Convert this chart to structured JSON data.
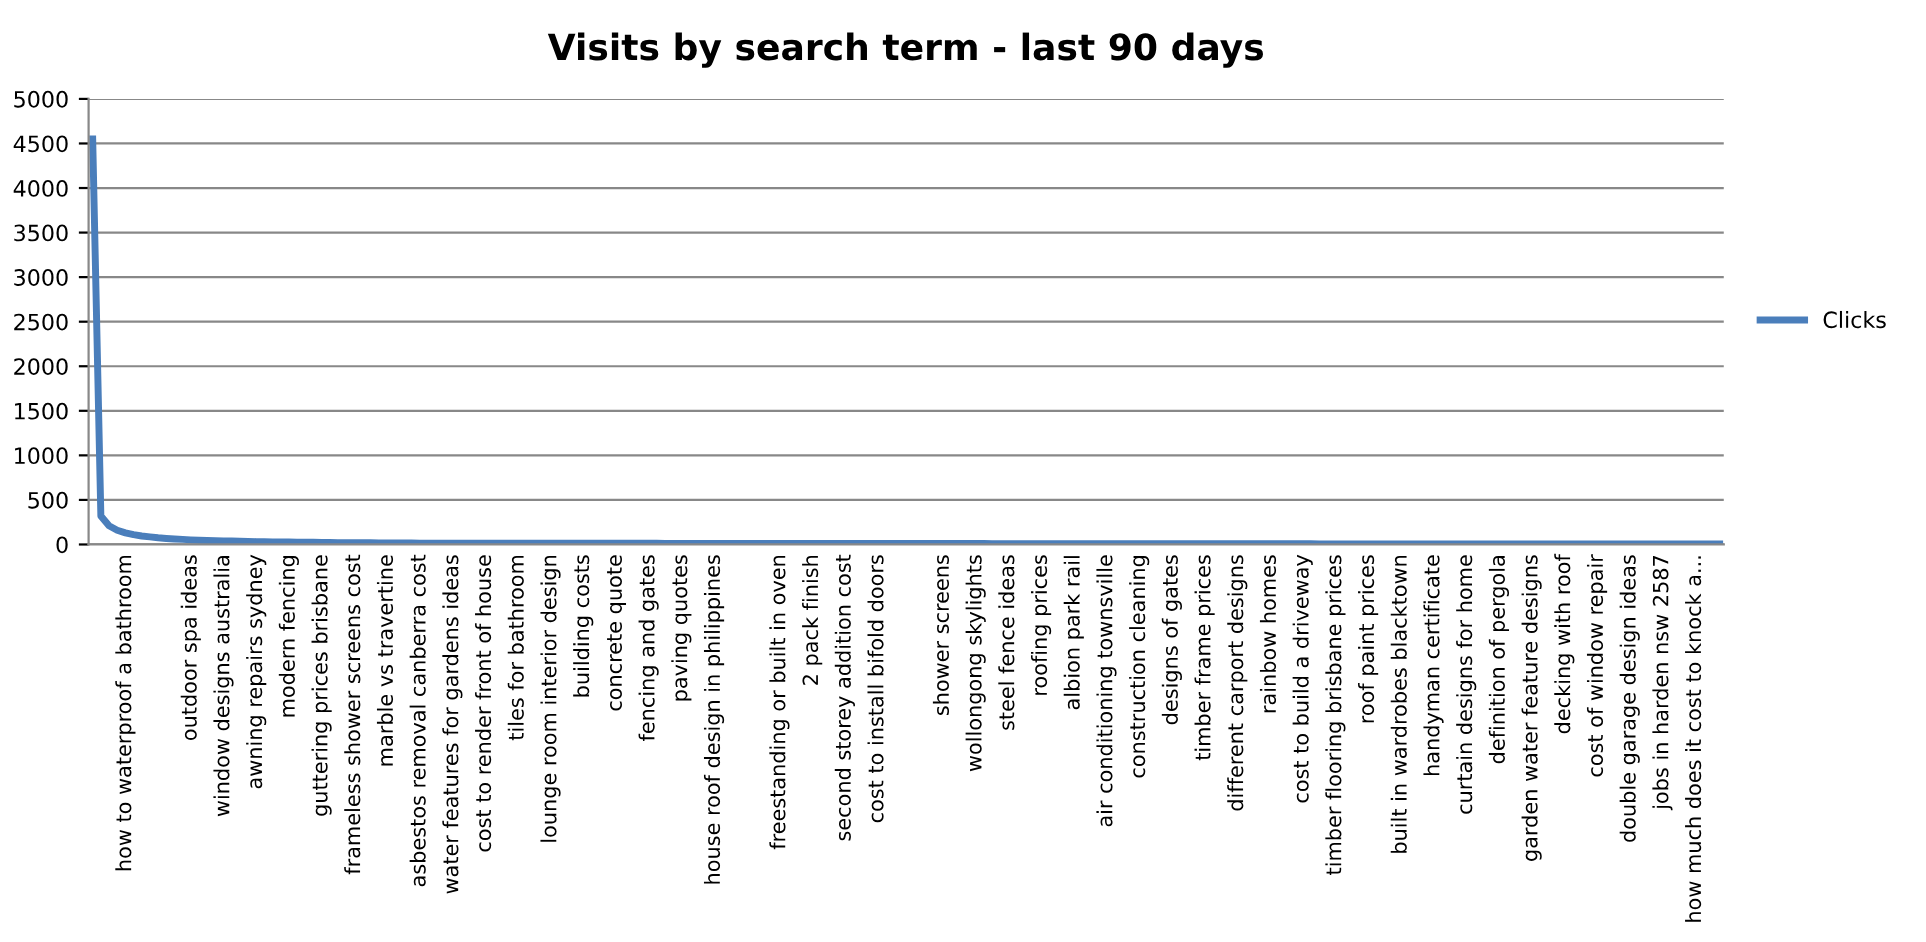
{
  "chart_data": {
    "type": "line",
    "title": "Visits by search term - last 90 days",
    "categories": [
      null,
      null,
      null,
      null,
      "how to waterproof a bathroom",
      null,
      null,
      null,
      null,
      null,
      null,
      null,
      "outdoor spa ideas",
      null,
      null,
      null,
      "window designs australia",
      null,
      null,
      null,
      "awning repairs sydney",
      null,
      null,
      null,
      "modern fencing",
      null,
      null,
      null,
      "guttering prices brisbane",
      null,
      null,
      null,
      "frameless shower screens cost",
      null,
      null,
      null,
      "marble vs travertine",
      null,
      null,
      null,
      "asbestos removal canberra cost",
      null,
      null,
      null,
      "water features for gardens ideas",
      null,
      null,
      null,
      "cost to render front of house",
      null,
      null,
      null,
      "tiles for bathroom",
      null,
      null,
      null,
      "lounge room interior design",
      null,
      null,
      null,
      "building costs",
      null,
      null,
      null,
      "concrete quote",
      null,
      null,
      null,
      "fencing and gates",
      null,
      null,
      null,
      "paving quotes",
      null,
      null,
      null,
      "house roof design in philippines",
      null,
      null,
      null,
      null,
      null,
      null,
      null,
      "freestanding or built in oven",
      null,
      null,
      null,
      "2 pack finish",
      null,
      null,
      null,
      "second storey addition cost",
      null,
      null,
      null,
      "cost to install bifold doors",
      null,
      null,
      null,
      null,
      null,
      null,
      null,
      "shower screens",
      null,
      null,
      null,
      "wollongong skylights",
      null,
      null,
      null,
      "steel fence ideas",
      null,
      null,
      null,
      "roofing prices",
      null,
      null,
      null,
      "albion park rail",
      null,
      null,
      null,
      "air conditioning townsville",
      null,
      null,
      null,
      "construction cleaning",
      null,
      null,
      null,
      "designs of gates",
      null,
      null,
      null,
      "timber frame prices",
      null,
      null,
      null,
      "different carport designs",
      null,
      null,
      null,
      "rainbow homes",
      null,
      null,
      null,
      "cost to build a driveway",
      null,
      null,
      null,
      "timber flooring brisbane prices",
      null,
      null,
      null,
      "roof paint prices",
      null,
      null,
      null,
      "built in wardrobes blacktown",
      null,
      null,
      null,
      "handyman certificate",
      null,
      null,
      null,
      "curtain designs for home",
      null,
      null,
      null,
      "definition of pergola",
      null,
      null,
      null,
      "garden water feature designs",
      null,
      null,
      null,
      "decking with roof",
      null,
      null,
      null,
      "cost of window repair",
      null,
      null,
      null,
      "double garage design ideas",
      null,
      null,
      null,
      "jobs in harden nsw 2587",
      null,
      null,
      null,
      "how much does it cost to knock a...",
      null,
      null,
      null
    ],
    "series": [
      {
        "name": "Clicks",
        "color": "#4a7ebb",
        "values": [
          4550,
          320,
          210,
          160,
          130,
          110,
          95,
          85,
          75,
          68,
          62,
          57,
          52,
          48,
          45,
          42,
          40,
          38,
          36,
          34,
          32,
          30,
          29,
          28,
          27,
          26,
          25,
          24,
          23,
          22,
          21,
          20,
          20,
          19,
          19,
          18,
          18,
          17,
          17,
          16,
          15,
          15,
          15,
          15,
          15,
          15,
          15,
          15,
          15,
          15,
          14,
          14,
          14,
          14,
          14,
          14,
          14,
          14,
          14,
          14,
          13,
          13,
          13,
          13,
          13,
          13,
          13,
          13,
          13,
          13,
          12,
          12,
          12,
          12,
          12,
          12,
          12,
          12,
          12,
          12,
          11,
          11,
          11,
          11,
          11,
          11,
          11,
          11,
          11,
          11,
          10,
          10,
          10,
          10,
          10,
          10,
          10,
          10,
          10,
          10,
          10,
          10,
          10,
          10,
          10,
          10,
          10,
          10,
          10,
          10,
          9,
          9,
          9,
          9,
          9,
          9,
          9,
          9,
          9,
          9,
          9,
          9,
          9,
          9,
          9,
          9,
          9,
          9,
          9,
          9,
          8,
          8,
          8,
          8,
          8,
          8,
          8,
          8,
          8,
          8,
          8,
          8,
          8,
          8,
          8,
          8,
          8,
          8,
          8,
          8,
          7,
          7,
          7,
          7,
          7,
          7,
          7,
          7,
          7,
          7,
          7,
          7,
          7,
          7,
          7,
          7,
          7,
          7,
          7,
          7,
          6,
          6,
          6,
          6,
          6,
          6,
          6,
          6,
          6,
          6,
          6,
          6,
          6,
          6,
          6,
          6,
          6,
          6,
          6,
          6,
          5,
          5,
          5,
          5,
          5,
          5,
          5,
          5,
          5,
          5
        ]
      }
    ],
    "ylim": [
      0,
      5000
    ],
    "yticks": [
      0,
      500,
      1000,
      1500,
      2000,
      2500,
      3000,
      3500,
      4000,
      4500,
      5000
    ],
    "grid": "y",
    "legend": "right",
    "marker": "none",
    "line_style": "solid"
  }
}
